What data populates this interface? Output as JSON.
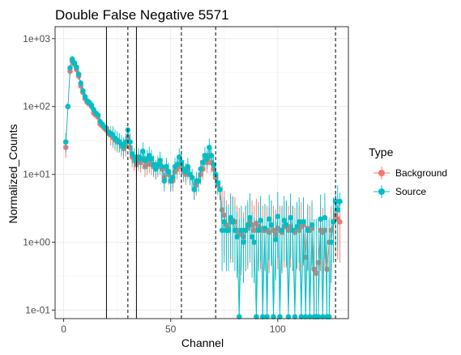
{
  "chart_data": {
    "type": "scatter",
    "title": "Double False Negative 5571",
    "xlabel": "Channel",
    "ylabel": "Normalized_Counts",
    "xlim": [
      -4,
      133
    ],
    "ylim": [
      0.075,
      1500
    ],
    "y_scale": "log",
    "x_ticks": [
      0,
      50,
      100
    ],
    "x_tick_labels": [
      "0",
      "50",
      "100"
    ],
    "y_ticks": [
      0.1,
      1,
      10,
      100,
      1000
    ],
    "y_tick_labels": [
      "1e-01",
      "1e+00",
      "1e+01",
      "1e+02",
      "1e+03"
    ],
    "grid": true,
    "legend": {
      "title": "Type",
      "position": "right"
    },
    "vlines_solid": [
      20,
      34
    ],
    "vlines_dashed": [
      30,
      55,
      71,
      127
    ],
    "series": [
      {
        "name": "Background",
        "color": "#F8766D",
        "x": [
          1,
          2,
          3,
          4,
          5,
          6,
          7,
          8,
          9,
          10,
          11,
          12,
          13,
          14,
          15,
          16,
          17,
          18,
          19,
          20,
          21,
          22,
          23,
          24,
          25,
          26,
          27,
          28,
          29,
          30,
          31,
          32,
          33,
          34,
          35,
          36,
          37,
          38,
          39,
          40,
          41,
          42,
          43,
          44,
          45,
          46,
          47,
          48,
          49,
          50,
          51,
          52,
          53,
          54,
          55,
          56,
          57,
          58,
          59,
          60,
          61,
          62,
          63,
          64,
          65,
          66,
          67,
          68,
          69,
          70,
          71,
          72,
          73,
          74,
          75,
          76,
          77,
          78,
          79,
          80,
          81,
          82,
          83,
          84,
          85,
          86,
          87,
          88,
          89,
          90,
          91,
          92,
          93,
          94,
          95,
          96,
          97,
          98,
          99,
          100,
          101,
          102,
          103,
          104,
          105,
          106,
          107,
          108,
          109,
          110,
          111,
          112,
          113,
          114,
          115,
          116,
          117,
          118,
          119,
          120,
          121,
          122,
          123,
          124,
          125,
          126,
          127,
          128,
          129
        ],
        "y": [
          25,
          100,
          330,
          460,
          420,
          350,
          280,
          200,
          160,
          130,
          115,
          110,
          100,
          80,
          75,
          70,
          55,
          52,
          48,
          45,
          40,
          38,
          35,
          32,
          30,
          30,
          26,
          24,
          26,
          35,
          25,
          18,
          16,
          14,
          16,
          15,
          17,
          13,
          14,
          15,
          14,
          13,
          12,
          13,
          14,
          12,
          9,
          12,
          10,
          8,
          8,
          11,
          12,
          14,
          13,
          11,
          10,
          12,
          10,
          9,
          6,
          7,
          8,
          10,
          12,
          16,
          15,
          19,
          15,
          12,
          9,
          7,
          6,
          3,
          2.5,
          1.8,
          1.6,
          2,
          2.1,
          2,
          1.5,
          1.4,
          1.3,
          1.2,
          1.5,
          1.6,
          2,
          1.8,
          1.5,
          1.9,
          1.7,
          1.6,
          1.5,
          1.5,
          1.5,
          1.4,
          1.8,
          1.5,
          1.3,
          1.6,
          1.5,
          1.4,
          1.7,
          1.7,
          1.5,
          1.7,
          1.5,
          1.4,
          1.6,
          1.5,
          1.7,
          1.8,
          0.6,
          1.6,
          1.5,
          1.6,
          0.4,
          0.35,
          0.5,
          1.5,
          1.4,
          1.5,
          0.4,
          1,
          1.5,
          2,
          2.5,
          2.2,
          2
        ]
      },
      {
        "name": "Source",
        "color": "#00BFC4",
        "x": [
          1,
          2,
          3,
          4,
          5,
          6,
          7,
          8,
          9,
          10,
          11,
          12,
          13,
          14,
          15,
          16,
          17,
          18,
          19,
          20,
          21,
          22,
          23,
          24,
          25,
          26,
          27,
          28,
          29,
          30,
          31,
          32,
          33,
          34,
          35,
          36,
          37,
          38,
          39,
          40,
          41,
          42,
          43,
          44,
          45,
          46,
          47,
          48,
          49,
          50,
          51,
          52,
          53,
          54,
          55,
          56,
          57,
          58,
          59,
          60,
          61,
          62,
          63,
          64,
          65,
          66,
          67,
          68,
          69,
          70,
          71,
          72,
          73,
          74,
          75,
          76,
          77,
          78,
          79,
          80,
          81,
          82,
          83,
          84,
          85,
          86,
          87,
          88,
          89,
          90,
          91,
          92,
          93,
          94,
          95,
          96,
          97,
          98,
          99,
          100,
          101,
          102,
          103,
          104,
          105,
          106,
          107,
          108,
          109,
          110,
          111,
          112,
          113,
          114,
          115,
          116,
          117,
          118,
          119,
          120,
          121,
          122,
          123,
          124,
          125,
          126,
          127,
          128,
          129
        ],
        "y": [
          30,
          100,
          370,
          500,
          440,
          380,
          300,
          220,
          170,
          140,
          120,
          115,
          105,
          90,
          80,
          75,
          60,
          55,
          50,
          48,
          42,
          40,
          38,
          34,
          32,
          30,
          28,
          26,
          30,
          45,
          30,
          20,
          18,
          16,
          18,
          17,
          22,
          16,
          17,
          19,
          17,
          14,
          12,
          14,
          16,
          13,
          8,
          13,
          11,
          8,
          9,
          13,
          14,
          18,
          15,
          12,
          11,
          13,
          10,
          9,
          6,
          8,
          8,
          12,
          15,
          19,
          17,
          25,
          19,
          14,
          10,
          7.5,
          6,
          1.5,
          2,
          1.5,
          1.5,
          2.3,
          2,
          1.5,
          1.2,
          0.08,
          1.5,
          1,
          1.5,
          1.8,
          2.3,
          1.2,
          1,
          0.08,
          1.5,
          2.1,
          0.08,
          1.6,
          0.08,
          2.2,
          1.8,
          0.08,
          1.1,
          2.4,
          0.08,
          1.5,
          2.1,
          1.8,
          0.08,
          2.3,
          1.5,
          0.08,
          1.7,
          2,
          0.08,
          2,
          0.08,
          1.5,
          0.08,
          1.8,
          0.08,
          0.08,
          0.08,
          2.2,
          0.08,
          2.3,
          0.08,
          0.08,
          1,
          2,
          4,
          3,
          4
        ]
      }
    ]
  }
}
